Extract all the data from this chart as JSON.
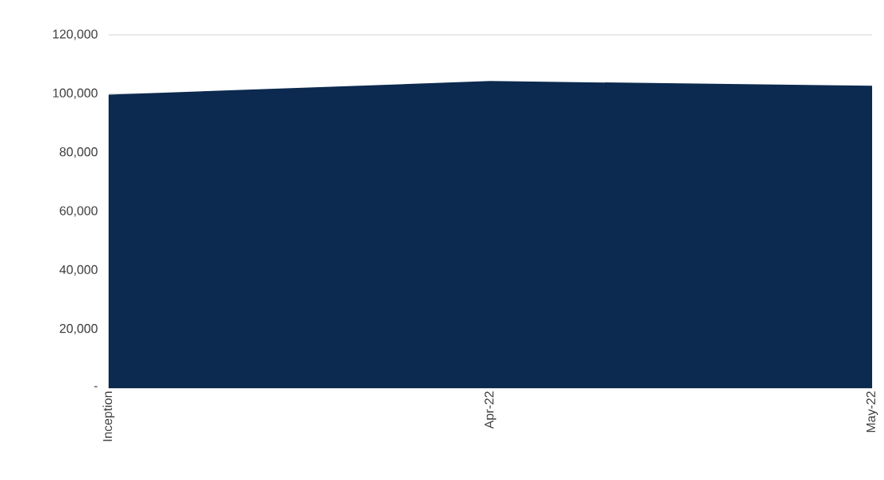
{
  "chart_data": {
    "type": "area",
    "categories": [
      "Inception",
      "Apr-22",
      "May-22"
    ],
    "values": [
      99700,
      104300,
      102700
    ],
    "color": "#0c2a4f",
    "ylim": [
      0,
      120000
    ],
    "yticks": [
      {
        "value": 0,
        "label": "-"
      },
      {
        "value": 20000,
        "label": "20,000"
      },
      {
        "value": 40000,
        "label": "40,000"
      },
      {
        "value": 60000,
        "label": "60,000"
      },
      {
        "value": 80000,
        "label": "80,000"
      },
      {
        "value": 100000,
        "label": "100,000"
      },
      {
        "value": 120000,
        "label": "120,000"
      }
    ],
    "grid": "y"
  }
}
